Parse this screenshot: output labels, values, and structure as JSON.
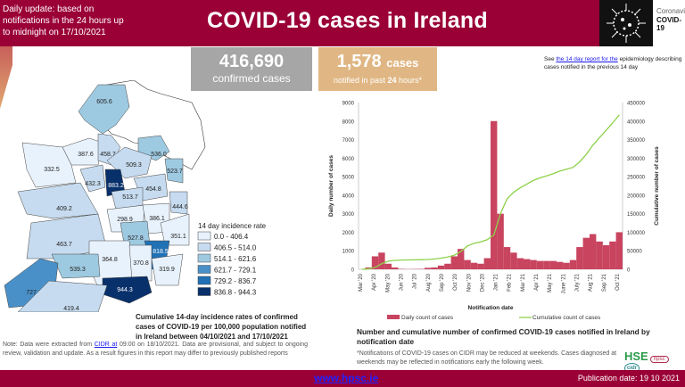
{
  "header": {
    "subtitle": "Daily update: based on notifications in the 24 hours up to midnight on 17/10/2021",
    "title": "COVID-19 cases in Ireland",
    "logo_line1": "Coronavirus",
    "logo_line2": "COVID-19"
  },
  "stats": {
    "confirmed_value": "416,690",
    "confirmed_label": "confirmed cases",
    "new_value": "1,578",
    "new_unit": "cases",
    "new_label_pre": "notified in past ",
    "new_label_bold": "24",
    "new_label_post": " hours*"
  },
  "see_note": {
    "pre": "See ",
    "link": "the 14 day report for the",
    "post": " epidemiology describing cases notified in the previous 14 day"
  },
  "map": {
    "legend_title": "14 day incidence rate",
    "legend": [
      {
        "label": "0.0 - 406.4",
        "color": "#e8f2fc"
      },
      {
        "label": "406.5 - 514.0",
        "color": "#c6dbef"
      },
      {
        "label": "514.1 - 621.6",
        "color": "#9ecae1"
      },
      {
        "label": "621.7 - 729.1",
        "color": "#4a90c8"
      },
      {
        "label": "729.2 - 836.7",
        "color": "#2171b5"
      },
      {
        "label": "836.8 - 944.3",
        "color": "#08306b"
      }
    ],
    "counties": [
      {
        "value": "605.6",
        "cls": 2
      },
      {
        "value": "387.6",
        "cls": 0
      },
      {
        "value": "458.7",
        "cls": 1
      },
      {
        "value": "536.0",
        "cls": 2
      },
      {
        "value": "509.3",
        "cls": 1
      },
      {
        "value": "332.5",
        "cls": 0
      },
      {
        "value": "523.7",
        "cls": 2
      },
      {
        "value": "432.3",
        "cls": 1
      },
      {
        "value": "883.2",
        "cls": 5
      },
      {
        "value": "454.8",
        "cls": 1
      },
      {
        "value": "513.7",
        "cls": 1
      },
      {
        "value": "409.2",
        "cls": 1
      },
      {
        "value": "444.6",
        "cls": 1
      },
      {
        "value": "298.9",
        "cls": 0
      },
      {
        "value": "386.1",
        "cls": 0
      },
      {
        "value": "351.1",
        "cls": 0
      },
      {
        "value": "527.8",
        "cls": 2
      },
      {
        "value": "463.7",
        "cls": 1
      },
      {
        "value": "818.5",
        "cls": 4
      },
      {
        "value": "364.8",
        "cls": 0
      },
      {
        "value": "370.8",
        "cls": 0
      },
      {
        "value": "539.3",
        "cls": 2
      },
      {
        "value": "319.9",
        "cls": 0
      },
      {
        "value": "727.1",
        "cls": 3
      },
      {
        "value": "944.3",
        "cls": 5
      },
      {
        "value": "419.4",
        "cls": 1
      }
    ],
    "caption": "Cumulative 14-day incidence rates of confirmed cases of COVID-19 per 100,000 population notified in Ireland between 04/10/2021 and 17/10/2021"
  },
  "note": {
    "pre": "Note: Data were extracted from ",
    "link": "CIDR at",
    "post": " 09:00 on 18/10/2021. Data are provisional, and subject to ongoing review, validation and update. As a result figures in this report may differ to previously published reports"
  },
  "chart_data": {
    "type": "bar",
    "title": "Number and cumulative number of confirmed COVID-19 cases notified in Ireland by notification date",
    "xlabel": "Notification date",
    "ylabel": "Daily number of cases",
    "y2label": "Cumulative number of cases",
    "ylim": [
      0,
      9000
    ],
    "y2lim": [
      0,
      450000
    ],
    "yticks": [
      "0",
      "1000",
      "2000",
      "3000",
      "4000",
      "5000",
      "6000",
      "7000",
      "8000",
      "9000"
    ],
    "y2ticks": [
      "0",
      "50000",
      "100000",
      "150000",
      "200000",
      "250000",
      "300000",
      "350000",
      "400000",
      "450000"
    ],
    "xticks": [
      "Mar '20",
      "Apr '20",
      "May '20",
      "Jun '20",
      "Jul '20",
      "Aug '20",
      "Sep '20",
      "Oct '20",
      "Nov '20",
      "Dec '20",
      "Jan '21",
      "Feb '21",
      "Mar '21",
      "Apr '21",
      "May '21",
      "June '21",
      "July '21",
      "Aug '21",
      "Sep '21",
      "Oct '21"
    ],
    "series": [
      {
        "name": "Daily count of cases",
        "type": "bar",
        "color": "#c8445f",
        "values": [
          0,
          100,
          700,
          900,
          300,
          100,
          20,
          10,
          15,
          20,
          80,
          100,
          200,
          300,
          700,
          1100,
          500,
          350,
          300,
          600,
          8000,
          3000,
          1200,
          900,
          600,
          550,
          500,
          450,
          450,
          450,
          400,
          350,
          500,
          1200,
          1700,
          1900,
          1500,
          1300,
          1500,
          2000
        ]
      },
      {
        "name": "Cumulative count of cases",
        "type": "line",
        "color": "#8ed14b",
        "values": [
          0,
          1000,
          5000,
          15000,
          22000,
          24000,
          25000,
          25300,
          25500,
          26000,
          26500,
          28000,
          30000,
          33000,
          38000,
          48000,
          63000,
          70000,
          74000,
          80000,
          93000,
          150000,
          190000,
          208000,
          220000,
          230000,
          240000,
          247000,
          252000,
          258000,
          265000,
          270000,
          275000,
          290000,
          310000,
          335000,
          355000,
          375000,
          395000,
          416690
        ]
      }
    ],
    "legend_position": "bottom"
  },
  "chart_note": "*Notifications of COVID-19 cases on CIDR may be reduced at weekends. Cases diagnosed at weekends may be reflected in notifications early the following week.",
  "orgs": {
    "hse": "HSE",
    "hpsc": "hpsc",
    "cidr": "cidr"
  },
  "footer": {
    "url": "www.hpsc.ie",
    "pub": "Publication date: 19 10 2021"
  }
}
